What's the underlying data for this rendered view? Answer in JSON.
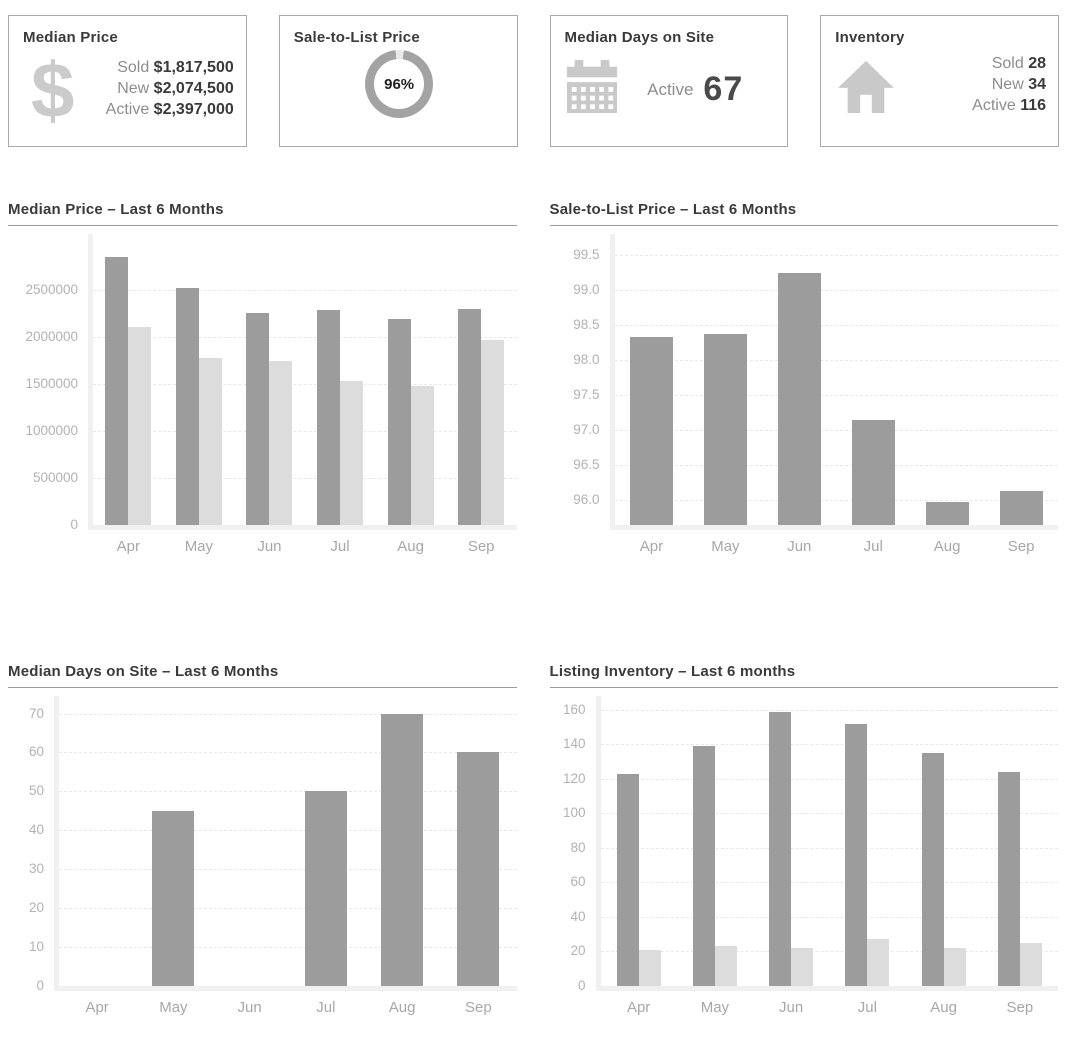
{
  "colors": {
    "bar_dark": "#9c9c9c",
    "bar_light": "#dcdcdc",
    "icon_gray": "#c9c9c9",
    "donut_ring": "#a3a3a3",
    "donut_gap": "#e9e9e9",
    "title_text": "#3a3a3a",
    "muted_text": "#8d8d8d",
    "axis_text": "#b2b2b2"
  },
  "icons": {
    "dollar_glyph": "$"
  },
  "cards": [
    {
      "title": "Median Price",
      "rows": [
        {
          "label": "Sold",
          "value": "$1,817,500"
        },
        {
          "label": "New",
          "value": "$2,074,500"
        },
        {
          "label": "Active",
          "value": "$2,397,000"
        }
      ]
    },
    {
      "title": "Sale-to-List Price",
      "gauge": {
        "percent": 96,
        "percent_label": "96%"
      }
    },
    {
      "title": "Median Days on Site",
      "big_value": {
        "label": "Active",
        "value": "67"
      }
    },
    {
      "title": "Inventory",
      "rows": [
        {
          "label": "Sold",
          "value": "28"
        },
        {
          "label": "New",
          "value": "34"
        },
        {
          "label": "Active",
          "value": "116"
        }
      ]
    }
  ],
  "chart_data": [
    {
      "type": "bar",
      "title": "Median Price – Last 6 Months",
      "categories": [
        "Apr",
        "May",
        "Jun",
        "Jul",
        "Aug",
        "Sep"
      ],
      "series": [
        {
          "color": "#9c9c9c",
          "values": [
            2850000,
            2530000,
            2260000,
            2290000,
            2190000,
            2300000
          ]
        },
        {
          "color": "#dcdcdc",
          "values": [
            2110000,
            1780000,
            1750000,
            1530000,
            1480000,
            1970000
          ]
        }
      ],
      "ylim": [
        0,
        3100000
      ],
      "yticks": [
        0,
        500000,
        1000000,
        1500000,
        2000000,
        2500000
      ],
      "ytick_labels": [
        "0",
        "500000",
        "1000000",
        "1500000",
        "2000000",
        "2500000"
      ],
      "grid": true,
      "legend": "none"
    },
    {
      "type": "bar",
      "title": "Sale-to-List Price – Last 6 Months",
      "categories": [
        "Apr",
        "May",
        "Jun",
        "Jul",
        "Aug",
        "Sep"
      ],
      "series": [
        {
          "color": "#9c9c9c",
          "values": [
            98.33,
            98.37,
            99.24,
            97.15,
            95.98,
            96.13
          ]
        }
      ],
      "ylim": [
        95.65,
        99.8
      ],
      "yticks": [
        96.0,
        96.5,
        97.0,
        97.5,
        98.0,
        98.5,
        99.0,
        99.5
      ],
      "ytick_labels": [
        "96.0",
        "96.5",
        "97.0",
        "97.5",
        "98.0",
        "98.5",
        "99.0",
        "99.5"
      ],
      "grid": true,
      "legend": "none"
    },
    {
      "type": "bar",
      "title": "Median Days on Site – Last 6 Months",
      "categories": [
        "Apr",
        "May",
        "Jun",
        "Jul",
        "Aug",
        "Sep"
      ],
      "series": [
        {
          "color": "#9c9c9c",
          "values": [
            0,
            45,
            0,
            50,
            70,
            60
          ]
        }
      ],
      "ylim": [
        0,
        74.5
      ],
      "yticks": [
        0,
        10,
        20,
        30,
        40,
        50,
        60,
        70
      ],
      "ytick_labels": [
        "0",
        "10",
        "20",
        "30",
        "40",
        "50",
        "60",
        "70"
      ],
      "grid": true,
      "legend": "none"
    },
    {
      "type": "bar",
      "title": "Listing Inventory – Last 6 months",
      "categories": [
        "Apr",
        "May",
        "Jun",
        "Jul",
        "Aug",
        "Sep"
      ],
      "series": [
        {
          "color": "#9c9c9c",
          "values": [
            123,
            139,
            159,
            152,
            135,
            124
          ]
        },
        {
          "color": "#dcdcdc",
          "values": [
            21,
            23,
            22,
            27,
            22,
            25
          ]
        }
      ],
      "ylim": [
        0,
        168
      ],
      "yticks": [
        0,
        20,
        40,
        60,
        80,
        100,
        120,
        140,
        160
      ],
      "ytick_labels": [
        "0",
        "20",
        "40",
        "60",
        "80",
        "100",
        "120",
        "140",
        "160"
      ],
      "grid": true,
      "legend": "none"
    }
  ]
}
